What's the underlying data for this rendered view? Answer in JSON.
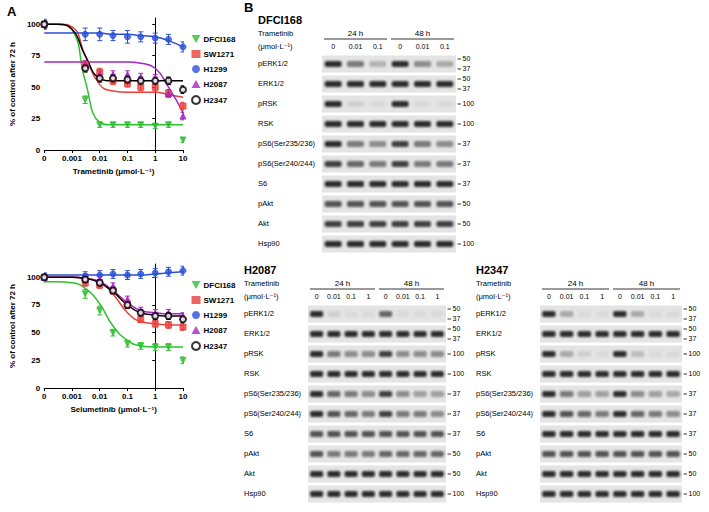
{
  "panel_labels": [
    "A",
    "B"
  ],
  "chart_data": [
    {
      "type": "line",
      "xlabel": "Trametinib (μmol·L⁻¹)",
      "ylabel": "% of control after 72 h",
      "log": "x",
      "grid": false,
      "xlim": [
        0.0001,
        10
      ],
      "xticks": [
        {
          "value": 0.0001,
          "label": "0"
        },
        0.001,
        0.01,
        0.1,
        1,
        10
      ],
      "ylim": [
        0,
        105
      ],
      "yticks": [
        0,
        25,
        50,
        75,
        100
      ],
      "x": [
        0.0001,
        0.003,
        0.01,
        0.03,
        0.1,
        0.3,
        1,
        3,
        10
      ],
      "curve_x": [
        0.0001,
        0.0003,
        0.001,
        0.003,
        0.01,
        0.03,
        0.1,
        0.3,
        1,
        3,
        10
      ],
      "series": [
        {
          "name": "DFCI168",
          "color": "#2fc02f",
          "marker": "triangle_down",
          "values": [
            100,
            40,
            20,
            20,
            20,
            20,
            19,
            20,
            8
          ],
          "errors": [
            2,
            3,
            2,
            2,
            2,
            2,
            2,
            2,
            2
          ],
          "curve": [
            100,
            100,
            96,
            55,
            22,
            20,
            20,
            20,
            20,
            20,
            20
          ]
        },
        {
          "name": "SW1271",
          "color": "#e8403a",
          "marker": "square",
          "values": [
            100,
            68,
            62,
            55,
            53,
            50,
            50,
            45,
            35
          ],
          "errors": [
            3,
            3,
            3,
            3,
            3,
            3,
            3,
            3,
            3
          ],
          "curve": [
            100,
            100,
            98,
            75,
            52,
            47,
            46,
            46,
            46,
            44,
            42
          ]
        },
        {
          "name": "H1299",
          "color": "#2a4fd6",
          "marker": "circle",
          "values": [
            100,
            92,
            92,
            91,
            90,
            90,
            89,
            88,
            82
          ],
          "errors": [
            4,
            5,
            5,
            4,
            5,
            4,
            4,
            4,
            4
          ],
          "curve": [
            93,
            93,
            93,
            93,
            93,
            92,
            92,
            91,
            90,
            87,
            82
          ]
        },
        {
          "name": "H2087",
          "color": "#a626c4",
          "marker": "triangle",
          "values": [
            100,
            68,
            60,
            60,
            60,
            58,
            57,
            45,
            27
          ],
          "errors": [
            3,
            3,
            3,
            3,
            3,
            3,
            3,
            3,
            3
          ],
          "curve": [
            70,
            70,
            70,
            70,
            70,
            70,
            70,
            69,
            65,
            50,
            30
          ]
        },
        {
          "name": "H2347",
          "color": "#000000",
          "marker": "open_circle",
          "values": [
            100,
            65,
            57,
            57,
            56,
            55,
            55,
            55,
            48
          ],
          "errors": [
            3,
            3,
            3,
            3,
            3,
            3,
            3,
            3,
            3
          ],
          "curve": [
            100,
            100,
            96,
            75,
            57,
            55,
            55,
            55,
            55,
            55,
            55
          ]
        }
      ]
    },
    {
      "type": "line",
      "xlabel": "Selumetinib (μmol·L⁻¹)",
      "ylabel": "% of control after 72 h",
      "log": "x",
      "grid": false,
      "xlim": [
        0.0001,
        10
      ],
      "xticks": [
        {
          "value": 0.0001,
          "label": "0"
        },
        0.001,
        0.01,
        0.1,
        1,
        10
      ],
      "ylim": [
        0,
        112
      ],
      "yticks": [
        0,
        25,
        50,
        75,
        100
      ],
      "x": [
        0.0001,
        0.003,
        0.01,
        0.03,
        0.1,
        0.3,
        1,
        3,
        10
      ],
      "curve_x": [
        0.0001,
        0.0003,
        0.001,
        0.003,
        0.01,
        0.03,
        0.1,
        0.3,
        1,
        3,
        10
      ],
      "series": [
        {
          "name": "DFCI168",
          "color": "#2fc02f",
          "marker": "triangle_down",
          "values": [
            100,
            85,
            70,
            50,
            40,
            38,
            37,
            37,
            25
          ],
          "errors": [
            3,
            4,
            4,
            3,
            3,
            3,
            3,
            3,
            3
          ],
          "curve": [
            96,
            96,
            95,
            90,
            76,
            56,
            43,
            38,
            37,
            37,
            37
          ]
        },
        {
          "name": "SW1271",
          "color": "#e8403a",
          "marker": "square",
          "values": [
            100,
            95,
            93,
            88,
            76,
            62,
            58,
            57,
            55
          ],
          "errors": [
            3,
            3,
            3,
            3,
            3,
            3,
            3,
            3,
            3
          ],
          "curve": [
            100,
            100,
            100,
            99,
            96,
            85,
            68,
            60,
            58,
            57,
            57
          ]
        },
        {
          "name": "H1299",
          "color": "#2a4fd6",
          "marker": "circle",
          "values": [
            100,
            101,
            102,
            103,
            102,
            103,
            104,
            105,
            106
          ],
          "errors": [
            4,
            4,
            4,
            4,
            4,
            4,
            4,
            4,
            4
          ],
          "curve": [
            102,
            102,
            102,
            102,
            102,
            102,
            102,
            102,
            103,
            104,
            105
          ]
        },
        {
          "name": "H2087",
          "color": "#a626c4",
          "marker": "triangle",
          "values": [
            100,
            100,
            98,
            92,
            80,
            70,
            68,
            68,
            65
          ],
          "errors": [
            3,
            3,
            3,
            3,
            3,
            3,
            3,
            3,
            3
          ],
          "curve": [
            100,
            100,
            100,
            99,
            96,
            88,
            77,
            70,
            68,
            67,
            67
          ]
        },
        {
          "name": "H2347",
          "color": "#000000",
          "marker": "open_circle",
          "values": [
            100,
            98,
            95,
            88,
            75,
            68,
            65,
            65,
            62
          ],
          "errors": [
            3,
            3,
            3,
            3,
            3,
            3,
            3,
            3,
            3
          ],
          "curve": [
            100,
            100,
            100,
            99,
            95,
            87,
            75,
            68,
            66,
            65,
            65
          ]
        }
      ]
    }
  ],
  "blots": [
    {
      "cell_line": "DFCI168",
      "drug_label": [
        "Trametinib",
        "(μmol·L⁻¹)"
      ],
      "times": [
        "24 h",
        "48 h"
      ],
      "doses": [
        0,
        0.01,
        0.1
      ],
      "rows": [
        {
          "label": "pERK1/2",
          "mw": [
            50,
            37
          ],
          "bands": [
            1,
            0.6,
            0.25,
            1,
            0.5,
            0.3
          ]
        },
        {
          "label": "ERK1/2",
          "mw": [
            50,
            37
          ],
          "bands": [
            1,
            1,
            1,
            1,
            1,
            1
          ]
        },
        {
          "label": "pRSK",
          "mw": [
            100
          ],
          "bands": [
            1,
            0.1,
            0.05,
            1,
            0.05,
            0.05
          ]
        },
        {
          "label": "RSK",
          "mw": [
            100
          ],
          "bands": [
            1,
            1,
            1,
            1,
            1,
            1
          ]
        },
        {
          "label": "pS6(Ser235/236)",
          "mw": [
            37
          ],
          "bands": [
            1,
            0.6,
            0.5,
            0.9,
            0.6,
            0.5
          ]
        },
        {
          "label": "pS6(Ser240/244)",
          "mw": [
            37
          ],
          "bands": [
            0.9,
            0.7,
            0.6,
            0.9,
            0.6,
            0.6
          ]
        },
        {
          "label": "S6",
          "mw": [
            37
          ],
          "bands": [
            1,
            1,
            1,
            1,
            1,
            1
          ]
        },
        {
          "label": "pAkt",
          "mw": [
            50
          ],
          "bands": [
            0.8,
            0.8,
            0.8,
            0.8,
            0.8,
            0.8
          ]
        },
        {
          "label": "Akt",
          "mw": [
            50
          ],
          "bands": [
            0.9,
            0.9,
            0.9,
            0.9,
            0.9,
            0.9
          ]
        },
        {
          "label": "Hsp90",
          "mw": [
            100
          ],
          "bands": [
            1,
            1,
            1,
            1,
            1,
            1
          ]
        }
      ]
    },
    {
      "cell_line": "H2087",
      "drug_label": [
        "Trametinib",
        "(μmol·L⁻¹)"
      ],
      "times": [
        "24 h",
        "48 h"
      ],
      "doses": [
        0,
        0.01,
        0.1,
        1
      ],
      "rows": [
        {
          "label": "pERK1/2",
          "mw": [
            50,
            37
          ],
          "bands": [
            1,
            0.1,
            0.05,
            0.05,
            0.7,
            0.05,
            0.05,
            0.05
          ]
        },
        {
          "label": "ERK1/2",
          "mw": [
            50,
            37
          ],
          "bands": [
            1,
            1,
            1,
            1,
            1,
            1,
            1,
            1
          ]
        },
        {
          "label": "pRSK",
          "mw": [
            100
          ],
          "bands": [
            1,
            0.6,
            0.5,
            0.5,
            0.9,
            0.5,
            0.5,
            0.5
          ]
        },
        {
          "label": "RSK",
          "mw": [
            100
          ],
          "bands": [
            1,
            1,
            1,
            1,
            1,
            1,
            1,
            1
          ]
        },
        {
          "label": "pS6(Ser235/236)",
          "mw": [
            37
          ],
          "bands": [
            1,
            0.7,
            0.6,
            0.5,
            0.9,
            0.5,
            0.4,
            0.4
          ]
        },
        {
          "label": "pS6(Ser240/244)",
          "mw": [
            37
          ],
          "bands": [
            1,
            0.8,
            0.7,
            0.6,
            0.9,
            0.6,
            0.6,
            0.5
          ]
        },
        {
          "label": "S6",
          "mw": [
            37
          ],
          "bands": [
            0.8,
            0.8,
            0.8,
            0.8,
            0.8,
            0.8,
            0.8,
            0.8
          ]
        },
        {
          "label": "pAkt",
          "mw": [
            50
          ],
          "bands": [
            0.8,
            0.6,
            0.6,
            0.6,
            0.7,
            0.7,
            0.7,
            0.7
          ]
        },
        {
          "label": "Akt",
          "mw": [
            50
          ],
          "bands": [
            1,
            1,
            1,
            1,
            1,
            1,
            1,
            1
          ]
        },
        {
          "label": "Hsp90",
          "mw": [
            100
          ],
          "bands": [
            1,
            1,
            1,
            1,
            1,
            1,
            1,
            1
          ]
        }
      ]
    },
    {
      "cell_line": "H2347",
      "drug_label": [
        "Trametinib",
        "(μmol·L⁻¹)"
      ],
      "times": [
        "24 h",
        "48 h"
      ],
      "doses": [
        0,
        0.01,
        0.1,
        1
      ],
      "rows": [
        {
          "label": "pERK1/2",
          "mw": [
            50,
            37
          ],
          "bands": [
            1,
            0.3,
            0.05,
            0.05,
            1,
            0.3,
            0.05,
            0.05
          ]
        },
        {
          "label": "ERK1/2",
          "mw": [
            50,
            37
          ],
          "bands": [
            1,
            1,
            1,
            1,
            1,
            1,
            1,
            1
          ]
        },
        {
          "label": "pRSK",
          "mw": [
            100
          ],
          "bands": [
            1,
            0.3,
            0.1,
            0.05,
            1,
            0.2,
            0.05,
            0.05
          ]
        },
        {
          "label": "RSK",
          "mw": [
            100
          ],
          "bands": [
            1,
            1,
            1,
            1,
            1,
            1,
            1,
            1
          ]
        },
        {
          "label": "pS6(Ser235/236)",
          "mw": [
            37
          ],
          "bands": [
            1,
            0.6,
            0.4,
            0.4,
            1,
            0.5,
            0.4,
            0.3
          ]
        },
        {
          "label": "pS6(Ser240/244)",
          "mw": [
            37
          ],
          "bands": [
            1,
            0.8,
            0.7,
            0.6,
            1,
            0.7,
            0.6,
            0.5
          ]
        },
        {
          "label": "S6",
          "mw": [
            37
          ],
          "bands": [
            1,
            1,
            1,
            1,
            1,
            1,
            1,
            1
          ]
        },
        {
          "label": "pAkt",
          "mw": [
            50
          ],
          "bands": [
            0.8,
            0.8,
            0.8,
            0.8,
            0.8,
            0.8,
            0.8,
            0.8
          ]
        },
        {
          "label": "Akt",
          "mw": [
            50
          ],
          "bands": [
            1,
            1,
            1,
            1,
            1,
            1,
            1,
            1
          ]
        },
        {
          "label": "Hsp90",
          "mw": [
            100
          ],
          "bands": [
            1,
            1,
            1,
            1,
            1,
            1,
            1,
            1
          ]
        }
      ]
    }
  ]
}
